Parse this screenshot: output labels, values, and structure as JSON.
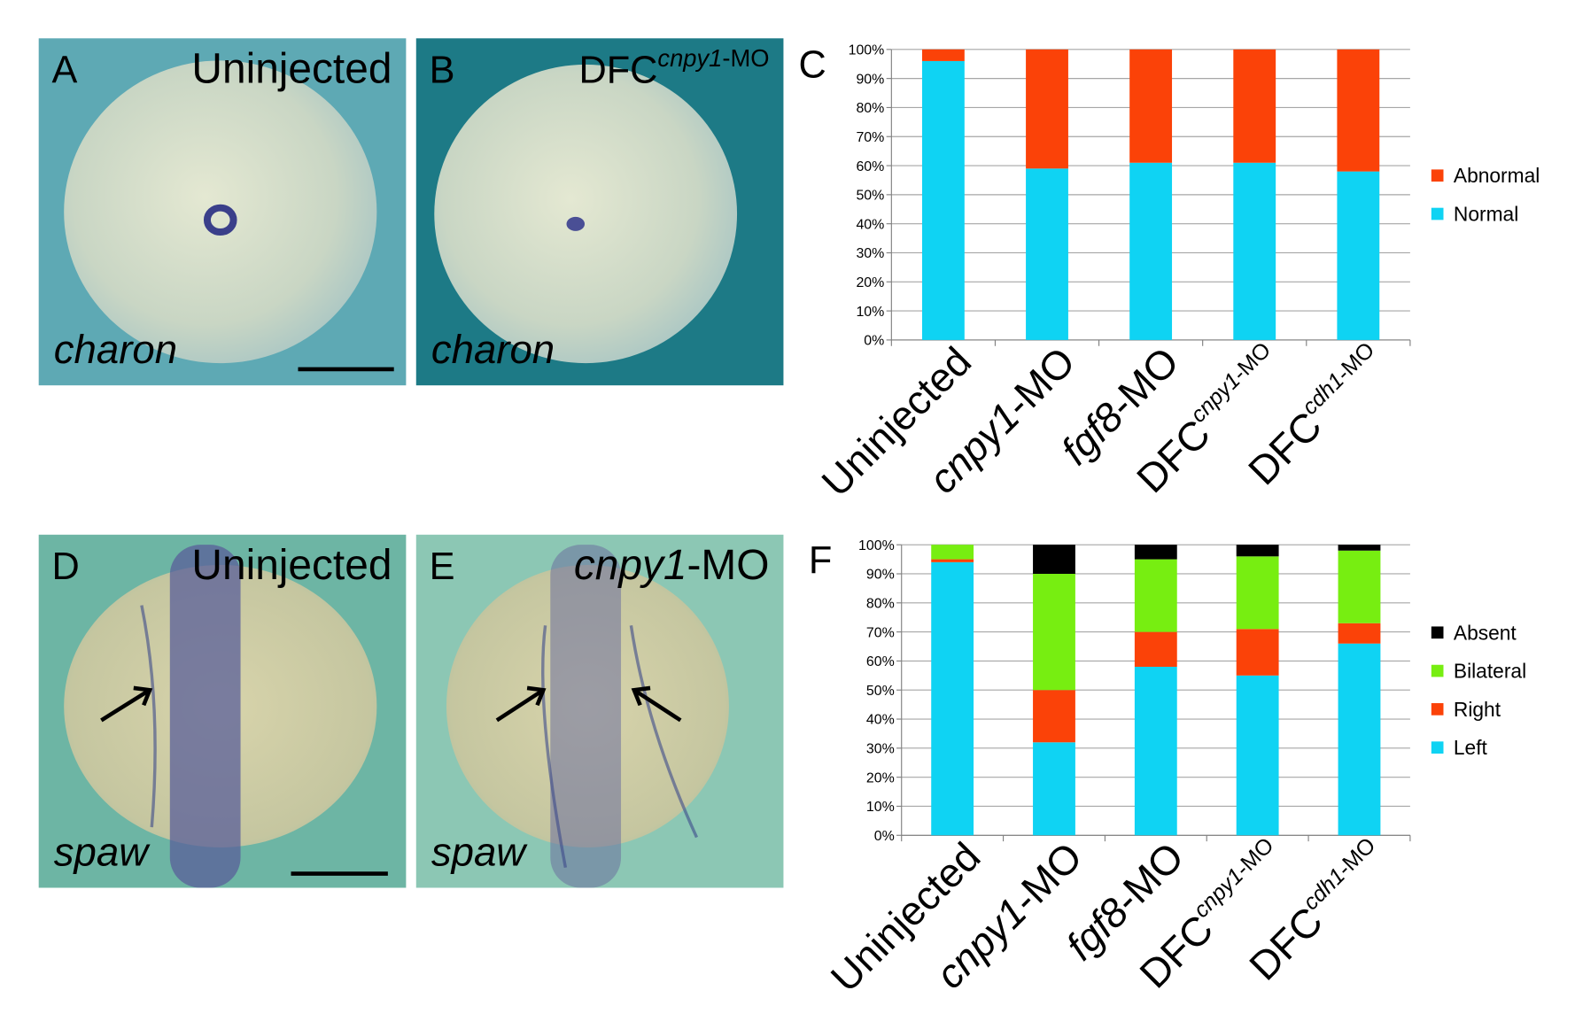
{
  "panels": [
    {
      "letter": "A",
      "title": "Uninjected",
      "title_sup": null,
      "gene": "charon"
    },
    {
      "letter": "B",
      "title": "DFC",
      "title_sup": "cnpy1-MO",
      "gene": "charon"
    },
    {
      "letter": "D",
      "title": "Uninjected",
      "title_sup": null,
      "gene": "spaw"
    },
    {
      "letter": "E",
      "title": "cnpy1-MO",
      "title_sup": null,
      "gene": "spaw"
    }
  ],
  "chart_data": [
    {
      "type": "stacked_bar",
      "label": "C",
      "categories": [
        "Uninjected",
        "cnpy1-MO",
        "fgf8-MO",
        "DFC",
        "DFC"
      ],
      "category_superscripts": [
        null,
        null,
        null,
        "cnpy1-MO",
        "cdh1-MO"
      ],
      "series": [
        {
          "name": "Normal",
          "color": "#0fd3f3",
          "values": [
            96,
            59,
            61,
            61,
            58
          ]
        },
        {
          "name": "Abnormal",
          "color": "#fb4208",
          "values": [
            4,
            41,
            39,
            39,
            42
          ]
        }
      ],
      "ylim": [
        0,
        100
      ],
      "yticks": [
        {
          "value": 0,
          "label": "0%"
        },
        {
          "value": 10,
          "label": "10%"
        },
        {
          "value": 20,
          "label": "20%"
        },
        {
          "value": 30,
          "label": "30%"
        },
        {
          "value": 40,
          "label": "40%"
        },
        {
          "value": 50,
          "label": "50%"
        },
        {
          "value": 60,
          "label": "60%"
        },
        {
          "value": 70,
          "label": "70%"
        },
        {
          "value": 80,
          "label": "80%"
        },
        {
          "value": 90,
          "label": "90%"
        },
        {
          "value": 100,
          "label": "100%"
        }
      ],
      "grid": true,
      "legend": "right"
    },
    {
      "type": "stacked_bar",
      "label": "F",
      "categories": [
        "Uninjected",
        "cnpy1-MO",
        "fgf8-MO",
        "DFC",
        "DFC"
      ],
      "category_superscripts": [
        null,
        null,
        null,
        "cnpy1-MO",
        "cdh1-MO"
      ],
      "series": [
        {
          "name": "Left",
          "color": "#0fd3f3",
          "values": [
            94,
            32,
            58,
            55,
            66
          ]
        },
        {
          "name": "Right",
          "color": "#fb4208",
          "values": [
            1,
            18,
            12,
            16,
            7
          ]
        },
        {
          "name": "Bilateral",
          "color": "#77ee11",
          "values": [
            5,
            40,
            25,
            25,
            25
          ]
        },
        {
          "name": "Absent",
          "color": "#000000",
          "values": [
            0,
            10,
            5,
            4,
            2
          ]
        }
      ],
      "ylim": [
        0,
        100
      ],
      "yticks": [
        {
          "value": 0,
          "label": "0%"
        },
        {
          "value": 10,
          "label": "10%"
        },
        {
          "value": 20,
          "label": "20%"
        },
        {
          "value": 30,
          "label": "30%"
        },
        {
          "value": 40,
          "label": "40%"
        },
        {
          "value": 50,
          "label": "50%"
        },
        {
          "value": 60,
          "label": "60%"
        },
        {
          "value": 70,
          "label": "70%"
        },
        {
          "value": 80,
          "label": "80%"
        },
        {
          "value": 90,
          "label": "90%"
        },
        {
          "value": 100,
          "label": "100%"
        }
      ],
      "grid": true,
      "legend": "right"
    }
  ]
}
